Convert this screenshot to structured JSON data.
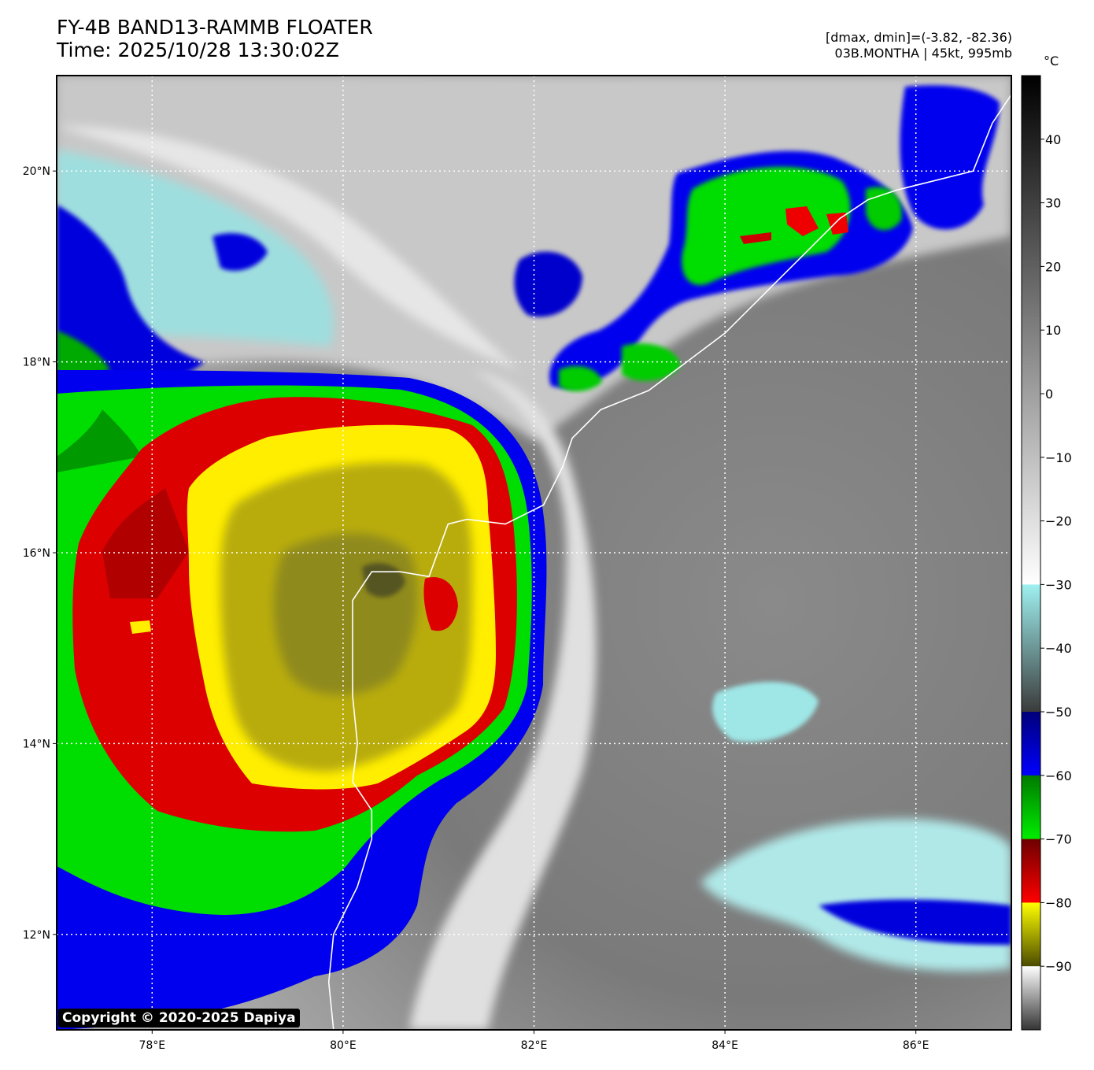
{
  "title": {
    "line1": "FY-4B BAND13-RAMMB FLOATER",
    "line2": "Time: 2025/10/28 13:30:02Z"
  },
  "info": {
    "line1": "[dmax, dmin]=(-3.82, -82.36)",
    "line2": "03B.MONTHA | 45kt, 995mb"
  },
  "colorbar": {
    "unit": "°C",
    "range": [
      -100,
      50
    ],
    "tick_values": [
      40,
      30,
      20,
      10,
      0,
      -10,
      -20,
      -30,
      -40,
      -50,
      -60,
      -70,
      -80,
      -90
    ],
    "tick_labels": [
      "40",
      "30",
      "20",
      "10",
      "0",
      "−10",
      "−20",
      "−30",
      "−40",
      "−50",
      "−60",
      "−70",
      "−80",
      "−90"
    ],
    "segments": [
      {
        "from": 50,
        "to": -30,
        "top_color": "#000000",
        "bottom_color": "#ffffff"
      },
      {
        "from": -30,
        "to": -50,
        "top_color": "#9ff0f0",
        "bottom_color": "#3a3a3a"
      },
      {
        "from": -50,
        "to": -60,
        "top_color": "#00007a",
        "bottom_color": "#0000ff"
      },
      {
        "from": -60,
        "to": -70,
        "top_color": "#007a00",
        "bottom_color": "#00ee00"
      },
      {
        "from": -70,
        "to": -80,
        "top_color": "#6e0000",
        "bottom_color": "#ff0000"
      },
      {
        "from": -80,
        "to": -90,
        "top_color": "#ffff00",
        "bottom_color": "#4a4a00"
      },
      {
        "from": -90,
        "to": -100,
        "top_color": "#ffffff",
        "bottom_color": "#333333"
      }
    ]
  },
  "axes": {
    "lon_range": [
      77.0,
      87.0
    ],
    "lat_range": [
      11.0,
      21.0
    ],
    "x_ticks": [
      {
        "value": 78,
        "label": "78°E"
      },
      {
        "value": 80,
        "label": "80°E"
      },
      {
        "value": 82,
        "label": "82°E"
      },
      {
        "value": 84,
        "label": "84°E"
      },
      {
        "value": 86,
        "label": "86°E"
      }
    ],
    "y_ticks": [
      {
        "value": 20,
        "label": "20°N"
      },
      {
        "value": 18,
        "label": "18°N"
      },
      {
        "value": 16,
        "label": "16°N"
      },
      {
        "value": 14,
        "label": "14°N"
      },
      {
        "value": 12,
        "label": "12°N"
      }
    ]
  },
  "storm": {
    "name": "03B.MONTHA",
    "center_lon": 80.4,
    "center_lat": 15.8
  },
  "coastline": [
    [
      79.9,
      11.0
    ],
    [
      79.85,
      11.5
    ],
    [
      79.9,
      12.0
    ],
    [
      80.15,
      12.5
    ],
    [
      80.3,
      13.0
    ],
    [
      80.3,
      13.3
    ],
    [
      80.1,
      13.6
    ],
    [
      80.15,
      14.0
    ],
    [
      80.1,
      14.5
    ],
    [
      80.1,
      15.0
    ],
    [
      80.1,
      15.5
    ],
    [
      80.3,
      15.8
    ],
    [
      80.6,
      15.8
    ],
    [
      80.9,
      15.75
    ],
    [
      81.1,
      16.3
    ],
    [
      81.3,
      16.35
    ],
    [
      81.7,
      16.3
    ],
    [
      82.1,
      16.5
    ],
    [
      82.3,
      16.9
    ],
    [
      82.4,
      17.2
    ],
    [
      82.7,
      17.5
    ],
    [
      83.2,
      17.7
    ],
    [
      83.6,
      18.0
    ],
    [
      84.0,
      18.3
    ],
    [
      84.5,
      18.8
    ],
    [
      84.9,
      19.2
    ],
    [
      85.2,
      19.5
    ],
    [
      85.5,
      19.7
    ],
    [
      85.8,
      19.8
    ],
    [
      86.2,
      19.9
    ],
    [
      86.6,
      20.0
    ],
    [
      86.8,
      20.5
    ],
    [
      87.0,
      20.8
    ]
  ],
  "copyright": "Copyright © 2020-2025 Dapiya"
}
